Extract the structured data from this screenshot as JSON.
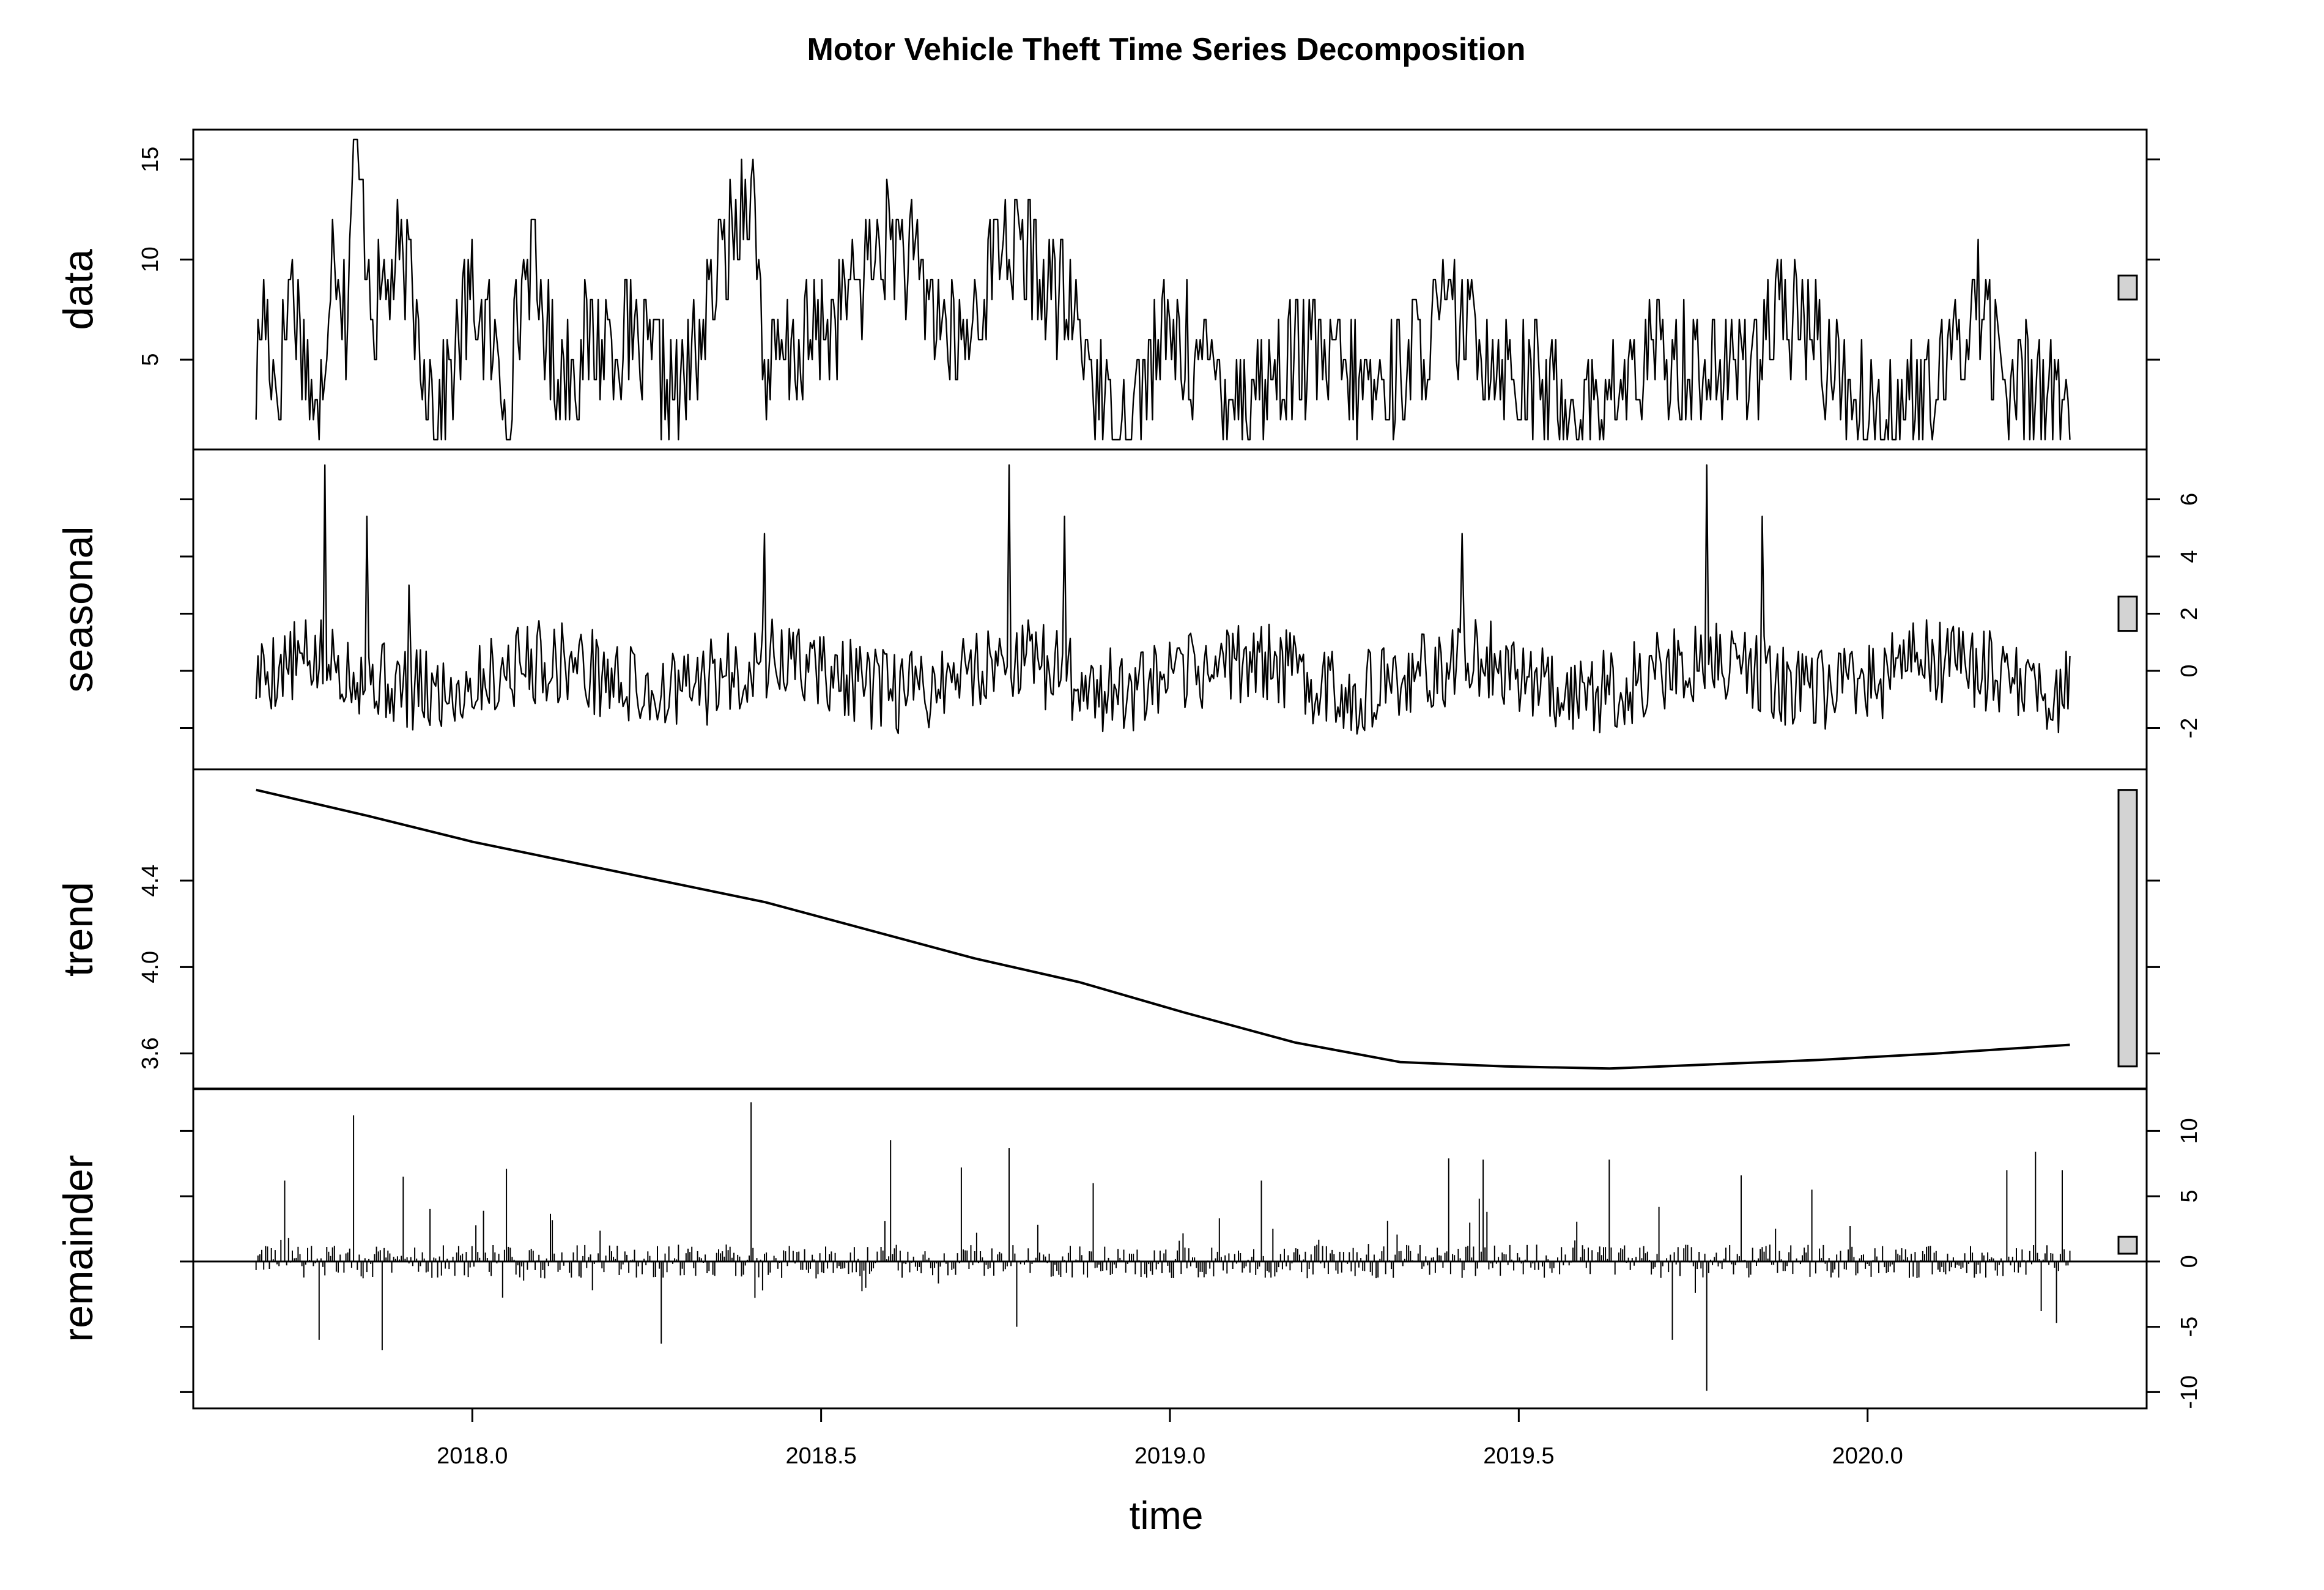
{
  "chart_data": {
    "type": "line",
    "title": "Motor Vehicle Theft Time Series Decomposition",
    "xlabel": "time",
    "xlim": [
      2017.6,
      2020.4
    ],
    "x_ticks": [
      "2018.0",
      "2018.5",
      "2019.0",
      "2019.5",
      "2020.0"
    ],
    "x_tick_values": [
      2018.0,
      2018.5,
      2019.0,
      2019.5,
      2020.0
    ],
    "series_x_range": [
      2017.69,
      2020.29
    ],
    "grid": false,
    "legend": "none",
    "panels": [
      {
        "name": "data",
        "axis_side": "left",
        "ylim": [
          1,
          16
        ],
        "y_ticks": [
          "5",
          "10",
          "15"
        ],
        "y_tick_values": [
          5,
          10,
          15
        ],
        "range_bar": [
          8,
          9.2
        ],
        "style": "line",
        "anchors": [
          [
            2017.69,
            3
          ],
          [
            2017.7,
            8
          ],
          [
            2017.72,
            3
          ],
          [
            2017.74,
            9
          ],
          [
            2017.78,
            1
          ],
          [
            2017.8,
            12
          ],
          [
            2017.82,
            6
          ],
          [
            2017.83,
            16
          ],
          [
            2017.86,
            7
          ],
          [
            2017.9,
            10
          ],
          [
            2017.95,
            2
          ],
          [
            2018.0,
            8
          ],
          [
            2018.05,
            3
          ],
          [
            2018.08,
            10
          ],
          [
            2018.12,
            4
          ],
          [
            2018.2,
            6
          ],
          [
            2018.3,
            3
          ],
          [
            2018.4,
            14
          ],
          [
            2018.42,
            4
          ],
          [
            2018.5,
            6
          ],
          [
            2018.6,
            11
          ],
          [
            2018.7,
            5
          ],
          [
            2018.76,
            11
          ],
          [
            2018.86,
            7
          ],
          [
            2018.92,
            1
          ],
          [
            2019.0,
            6
          ],
          [
            2019.1,
            3
          ],
          [
            2019.2,
            5
          ],
          [
            2019.3,
            3
          ],
          [
            2019.4,
            7
          ],
          [
            2019.5,
            4
          ],
          [
            2019.6,
            2
          ],
          [
            2019.7,
            5
          ],
          [
            2019.8,
            4
          ],
          [
            2019.9,
            7
          ],
          [
            2020.0,
            2
          ],
          [
            2020.1,
            3
          ],
          [
            2020.16,
            8
          ],
          [
            2020.2,
            3
          ],
          [
            2020.25,
            4
          ],
          [
            2020.29,
            2
          ]
        ],
        "amplitude": 3.2,
        "seed": 17
      },
      {
        "name": "seasonal",
        "axis_side": "right",
        "ylim": [
          -3.1,
          7.4
        ],
        "y_ticks": [
          "-2",
          "0",
          "2",
          "4",
          "6"
        ],
        "y_tick_values": [
          -2,
          0,
          2,
          4,
          6
        ],
        "range_bar": [
          1.4,
          2.6
        ],
        "style": "line",
        "period": 1.0,
        "spikes": [
          [
            2017.79,
            7.2
          ],
          [
            2018.77,
            7.2
          ],
          [
            2019.77,
            7.2
          ],
          [
            2017.85,
            5.4
          ],
          [
            2018.85,
            5.4
          ],
          [
            2019.85,
            5.4
          ],
          [
            2018.42,
            4.8
          ],
          [
            2019.42,
            4.8
          ],
          [
            2017.91,
            3.0
          ]
        ],
        "amplitude": 1.5,
        "seed": 5
      },
      {
        "name": "trend",
        "axis_side": "left",
        "ylim": [
          3.48,
          4.87
        ],
        "y_ticks": [
          "3.6",
          "4.0",
          "4.4"
        ],
        "y_tick_values": [
          3.6,
          4.0,
          4.4
        ],
        "range_bar": [
          3.54,
          4.82
        ],
        "style": "line",
        "points": [
          [
            2017.69,
            4.82
          ],
          [
            2017.85,
            4.7
          ],
          [
            2018.0,
            4.58
          ],
          [
            2018.15,
            4.48
          ],
          [
            2018.27,
            4.4
          ],
          [
            2018.42,
            4.3
          ],
          [
            2018.57,
            4.17
          ],
          [
            2018.72,
            4.04
          ],
          [
            2018.87,
            3.93
          ],
          [
            2019.02,
            3.79
          ],
          [
            2019.18,
            3.65
          ],
          [
            2019.33,
            3.56
          ],
          [
            2019.48,
            3.54
          ],
          [
            2019.63,
            3.53
          ],
          [
            2019.78,
            3.55
          ],
          [
            2019.93,
            3.57
          ],
          [
            2020.1,
            3.6
          ],
          [
            2020.29,
            3.64
          ]
        ]
      },
      {
        "name": "remainder",
        "axis_side": "right",
        "ylim": [
          -10.5,
          12.5
        ],
        "y_ticks": [
          "-10",
          "-5",
          "0",
          "5",
          "10"
        ],
        "y_tick_values": [
          -10,
          -5,
          0,
          5,
          10
        ],
        "range_bar": [
          0.6,
          1.9
        ],
        "style": "bars",
        "spikes": [
          [
            2017.83,
            11.2
          ],
          [
            2018.4,
            12.2
          ],
          [
            2018.6,
            9.3
          ],
          [
            2018.77,
            8.7
          ],
          [
            2017.73,
            6.2
          ],
          [
            2017.9,
            6.5
          ],
          [
            2018.05,
            7.1
          ],
          [
            2018.7,
            7.2
          ],
          [
            2018.89,
            6.0
          ],
          [
            2019.13,
            6.2
          ],
          [
            2019.4,
            7.9
          ],
          [
            2019.45,
            7.8
          ],
          [
            2019.63,
            7.8
          ],
          [
            2019.82,
            6.6
          ],
          [
            2019.92,
            5.5
          ],
          [
            2020.2,
            7.0
          ],
          [
            2020.24,
            8.4
          ],
          [
            2020.28,
            7.0
          ],
          [
            2017.87,
            -6.8
          ],
          [
            2018.27,
            -6.3
          ],
          [
            2018.78,
            -5.0
          ],
          [
            2019.77,
            -9.9
          ],
          [
            2019.72,
            -6.0
          ],
          [
            2017.78,
            -6.0
          ],
          [
            2020.25,
            -3.8
          ],
          [
            2020.27,
            -4.7
          ]
        ],
        "amplitude": 1.3,
        "seed": 29
      }
    ]
  }
}
